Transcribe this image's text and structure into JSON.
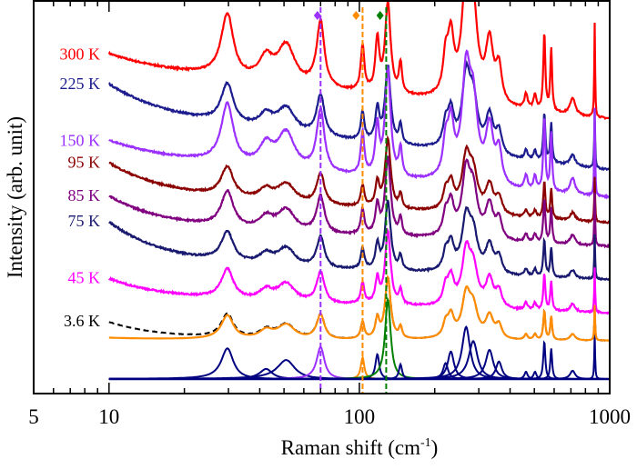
{
  "chart_data": {
    "type": "line",
    "xlabel": "Raman shift (cm",
    "xlabel_sup": "-1",
    "xlabel_close": ")",
    "ylabel": "Intensity (arb. unit)",
    "xscale": "log",
    "xlim": [
      5,
      1000
    ],
    "ylim": [
      0,
      10
    ],
    "x_tick_labels": [
      {
        "v": 5,
        "t": "5"
      },
      {
        "v": 10,
        "t": "10"
      },
      {
        "v": 100,
        "t": "100"
      },
      {
        "v": 1000,
        "t": "1000"
      }
    ],
    "grid": false,
    "peaks_cm1": [
      {
        "c": 29.7,
        "w": 2,
        "a": 1
      },
      {
        "c": 42.4,
        "w": 3,
        "a": 0.33
      },
      {
        "c": 51,
        "w": 5,
        "a": 0.62
      },
      {
        "c": 70,
        "w": 3,
        "a": 1.05,
        "mode": "purple"
      },
      {
        "c": 103,
        "w": 2,
        "a": 0.71,
        "mode": "orange"
      },
      {
        "c": 118,
        "w": 2.5,
        "a": 0.81
      },
      {
        "c": 130,
        "w": 4,
        "a": 2.6,
        "mode": "green"
      },
      {
        "c": 146,
        "w": 2.5,
        "a": 0.48
      },
      {
        "c": 221,
        "w": 6,
        "a": 0.52
      },
      {
        "c": 232,
        "w": 8,
        "a": 0.9
      },
      {
        "c": 267,
        "w": 12,
        "a": 1.7
      },
      {
        "c": 285,
        "w": 14,
        "a": 1.24
      },
      {
        "c": 331,
        "w": 14,
        "a": 0.95
      },
      {
        "c": 361,
        "w": 12,
        "a": 0.57
      },
      {
        "c": 463,
        "w": 8,
        "a": 0.24
      },
      {
        "c": 503,
        "w": 8,
        "a": 0.24
      },
      {
        "c": 548,
        "w": 6,
        "a": 1.24
      },
      {
        "c": 584,
        "w": 6,
        "a": 1.0
      },
      {
        "c": 711,
        "w": 20,
        "a": 0.27
      },
      {
        "c": 871,
        "w": 4,
        "a": 1.5
      }
    ],
    "series": [
      {
        "name": "300 K",
        "color": "#ff0000",
        "base": 7.0,
        "slope": 0.62,
        "tail": 0.36,
        "scale": 1.6,
        "green": 0.55
      },
      {
        "name": "225 K",
        "color": "#1c1c8e",
        "base": 5.7,
        "slope": 0.69,
        "tail": 0.77,
        "scale": 1.0,
        "green": 0.75
      },
      {
        "name": "150 K",
        "color": "#9b30ff",
        "base": 5.0,
        "slope": 0.49,
        "tail": 0.42,
        "scale": 1.5,
        "green": 0.7
      },
      {
        "name": "95 K",
        "color": "#8b0000",
        "base": 4.35,
        "slope": 0.36,
        "tail": 0.78,
        "scale": 0.75,
        "green": 0.9
      },
      {
        "name": "85 K",
        "color": "#800080",
        "base": 3.75,
        "slope": 0.24,
        "tail": 0.77,
        "scale": 0.9,
        "green": 0.85
      },
      {
        "name": "75 K",
        "color": "#191970",
        "base": 2.9,
        "slope": 0.21,
        "tail": 1.03,
        "scale": 0.75,
        "green": 0.9
      },
      {
        "name": "45 K",
        "color": "#ff00ff",
        "base": 2.05,
        "slope": 0.18,
        "tail": 0.49,
        "scale": 0.75,
        "green": 0.95
      },
      {
        "name": "3.6 K",
        "color": "#000000",
        "dashed": true,
        "base": 1.35,
        "slope": 0,
        "tail": 0.45,
        "scale": 0.6,
        "green": 1.0,
        "fit_color": "#ff8c00"
      }
    ],
    "fit_components": {
      "base": 0.37,
      "scale": 0.78,
      "color": "#000080",
      "mode_colors": {
        "purple": "#9b30ff",
        "orange": "#ff8c00",
        "green": "#008000"
      }
    },
    "marked_modes": [
      {
        "x": 70,
        "color": "#9b30ff",
        "marker_x": 68
      },
      {
        "x": 103,
        "color": "#ff8c00",
        "marker_x": 97
      },
      {
        "x": 128,
        "color": "#008000",
        "marker_x": 121
      }
    ]
  }
}
